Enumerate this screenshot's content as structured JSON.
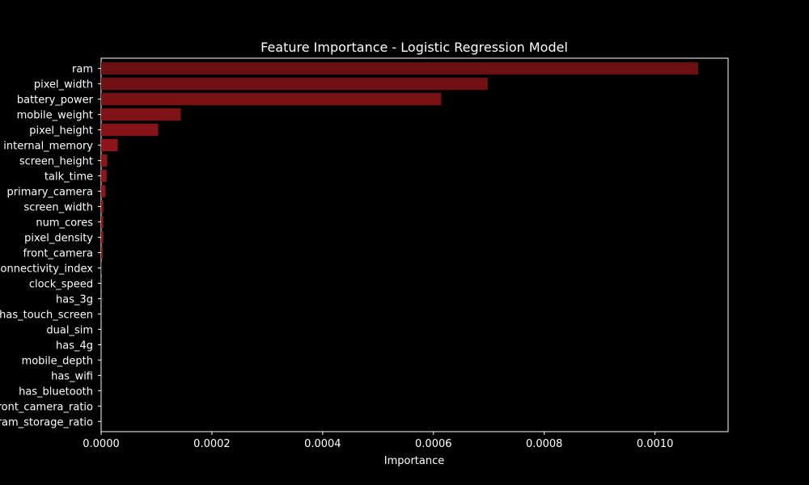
{
  "chart_data": {
    "type": "bar",
    "orientation": "horizontal",
    "title": "Feature Importance - Logistic Regression Model",
    "xlabel": "Importance",
    "ylabel": "",
    "xlim": [
      0,
      0.001132
    ],
    "x_ticks": [
      0,
      0.0002,
      0.0004,
      0.0006,
      0.0008,
      0.001
    ],
    "x_tick_labels": [
      "0.0000",
      "0.0002",
      "0.0004",
      "0.0006",
      "0.0008",
      "0.0010"
    ],
    "grid": false,
    "categories": [
      "ram",
      "pixel_width",
      "battery_power",
      "mobile_weight",
      "pixel_height",
      "internal_memory",
      "screen_height",
      "talk_time",
      "primary_camera",
      "screen_width",
      "num_cores",
      "pixel_density",
      "front_camera",
      "connectivity_index",
      "clock_speed",
      "has_3g",
      "has_touch_screen",
      "dual_sim",
      "has_4g",
      "mobile_depth",
      "has_wifi",
      "has_bluetooth",
      "front_camera_ratio",
      "ram_storage_ratio"
    ],
    "values": [
      0.001078,
      0.000698,
      0.000614,
      0.000144,
      0.000103,
      3e-05,
      1.1e-05,
      1e-05,
      8e-06,
      4e-06,
      4e-06,
      4e-06,
      3e-06,
      5e-07,
      3e-07,
      2e-07,
      2e-07,
      1e-07,
      1e-07,
      1e-07,
      1e-07,
      1e-07,
      5e-08,
      5e-08
    ],
    "colors": {
      "background": "#000000",
      "axis": "#ffffff",
      "text": "#ffffff",
      "bar_gradient": [
        "#6b0f12",
        "#8d1418"
      ]
    }
  }
}
